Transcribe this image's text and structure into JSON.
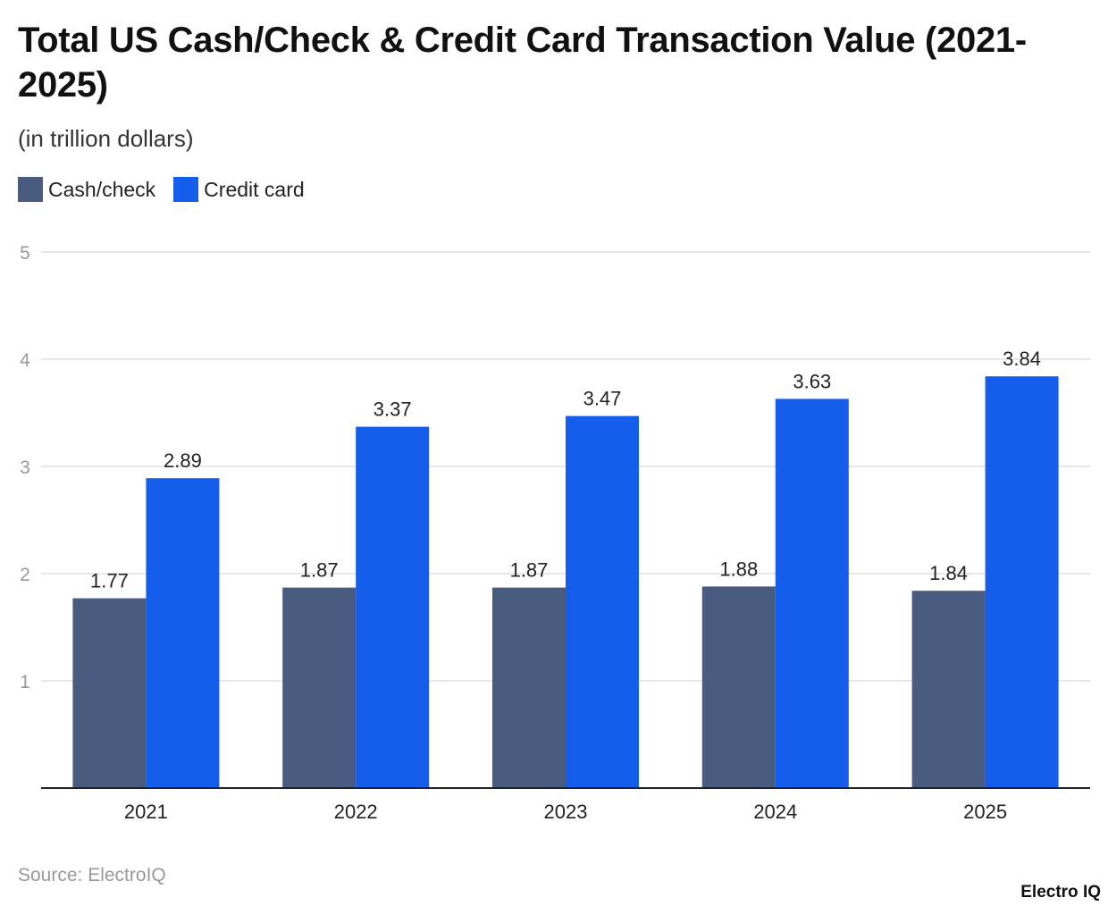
{
  "chart_data": {
    "type": "bar",
    "title": "Total US Cash/Check & Credit Card Transaction Value (2021-2025)",
    "subtitle": "(in trillion dollars)",
    "categories": [
      "2021",
      "2022",
      "2023",
      "2024",
      "2025"
    ],
    "series": [
      {
        "name": "Cash/check",
        "color": "#4a5b80",
        "values": [
          1.77,
          1.87,
          1.87,
          1.88,
          1.84
        ]
      },
      {
        "name": "Credit card",
        "color": "#155deb",
        "values": [
          2.89,
          3.37,
          3.47,
          3.63,
          3.84
        ]
      }
    ],
    "yticks": [
      "1",
      "2",
      "3",
      "4",
      "5"
    ],
    "ylim": [
      0,
      5
    ],
    "xlabel": "",
    "ylabel": "",
    "grid": true,
    "legend": "top-left"
  },
  "source": "Source: ElectroIQ",
  "logo": "Electro IQ"
}
